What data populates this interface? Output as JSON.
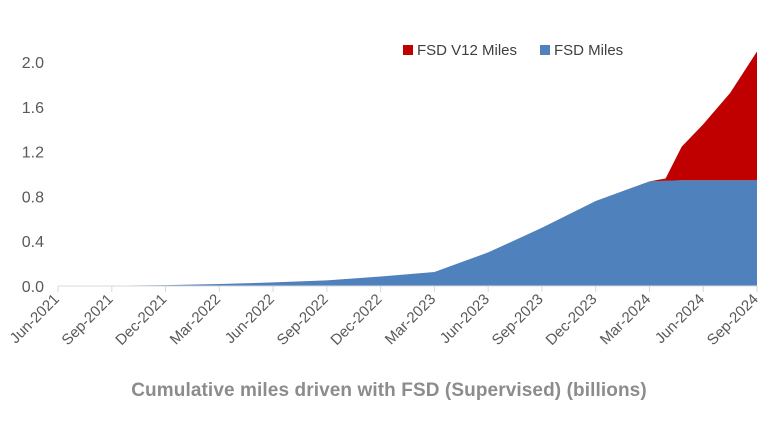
{
  "chart_data": {
    "type": "area",
    "stacked": true,
    "title": "Cumulative miles driven with FSD (Supervised) (billions)",
    "xlabel": "",
    "ylabel": "",
    "ylim": [
      0,
      2.1
    ],
    "yticks": [
      0.0,
      0.4,
      0.8,
      1.2,
      1.6,
      2.0
    ],
    "ytick_labels": [
      "0.0",
      "0.4",
      "0.8",
      "1.2",
      "1.6",
      "2.0"
    ],
    "x_tick_labels": [
      "Jun-2021",
      "Sep-2021",
      "Dec-2021",
      "Mar-2022",
      "Jun-2022",
      "Sep-2022",
      "Dec-2022",
      "Mar-2023",
      "Jun-2023",
      "Sep-2023",
      "Dec-2023",
      "Mar-2024",
      "Jun-2024",
      "Sep-2024"
    ],
    "x_range": [
      0,
      13
    ],
    "legend_position": "top-right",
    "grid": false,
    "series": [
      {
        "name": "FSD Miles",
        "color": "#4f81bd",
        "x": [
          0,
          1,
          2,
          3,
          4,
          5,
          6,
          7,
          8,
          9,
          10,
          11,
          11.5,
          12,
          13
        ],
        "values": [
          0.001,
          0.003,
          0.008,
          0.018,
          0.032,
          0.05,
          0.085,
          0.125,
          0.3,
          0.52,
          0.76,
          0.935,
          0.945,
          0.945,
          0.945
        ]
      },
      {
        "name": "FSD V12 Miles",
        "color": "#c00000",
        "x": [
          10.8,
          11,
          11.3,
          11.6,
          12,
          12.5,
          13
        ],
        "values": [
          0.0,
          0.0,
          0.02,
          0.3,
          0.5,
          0.78,
          1.15
        ]
      }
    ]
  }
}
